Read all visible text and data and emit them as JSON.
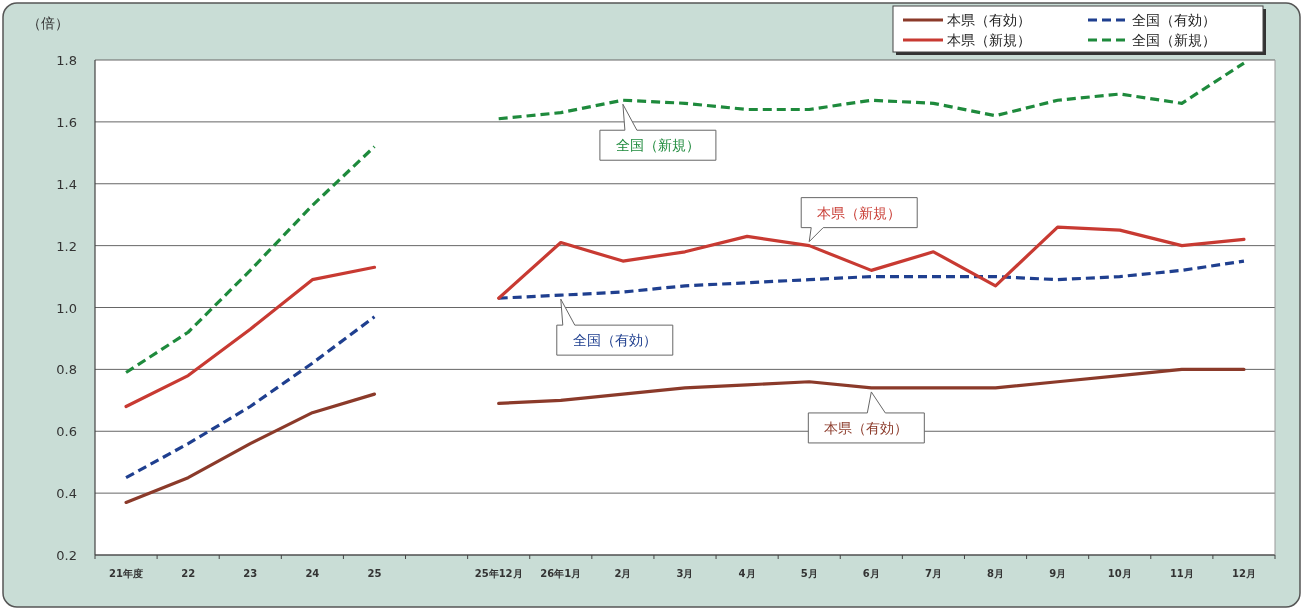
{
  "chart_data": {
    "type": "line",
    "ylabel": "（倍）",
    "categories": [
      "21年度",
      "22",
      "23",
      "24",
      "25",
      null,
      "25年12月",
      "26年1月",
      "2月",
      "3月",
      "4月",
      "5月",
      "6月",
      "7月",
      "8月",
      "9月",
      "10月",
      "11月",
      "12月"
    ],
    "series": [
      {
        "name": "本県（有効）",
        "color": "#8b3a2a",
        "line_style": "solid",
        "values": [
          0.37,
          0.45,
          0.56,
          0.66,
          0.72,
          null,
          0.69,
          0.7,
          0.72,
          0.74,
          0.75,
          0.76,
          0.74,
          0.74,
          0.74,
          0.76,
          0.78,
          0.8,
          0.8
        ]
      },
      {
        "name": "全国（有効）",
        "color": "#1f3f8f",
        "line_style": "dashed",
        "values": [
          0.45,
          0.56,
          0.68,
          0.82,
          0.97,
          null,
          1.03,
          1.04,
          1.05,
          1.07,
          1.08,
          1.09,
          1.1,
          1.1,
          1.1,
          1.09,
          1.1,
          1.12,
          1.15
        ]
      },
      {
        "name": "本県（新規）",
        "color": "#c83a32",
        "line_style": "solid",
        "values": [
          0.68,
          0.78,
          0.93,
          1.09,
          1.13,
          null,
          1.03,
          1.21,
          1.15,
          1.18,
          1.23,
          1.2,
          1.12,
          1.18,
          1.07,
          1.26,
          1.25,
          1.2,
          1.22
        ]
      },
      {
        "name": "全国（新規）",
        "color": "#1e8a3c",
        "line_style": "dashed",
        "values": [
          0.79,
          0.92,
          1.12,
          1.33,
          1.52,
          null,
          1.61,
          1.63,
          1.67,
          1.66,
          1.64,
          1.64,
          1.67,
          1.66,
          1.62,
          1.67,
          1.69,
          1.66,
          1.79
        ]
      }
    ],
    "annotations": [
      {
        "text": "全国（新規）",
        "x": "2月",
        "y": 1.67
      },
      {
        "text": "全国（有効）",
        "x": "26年1月",
        "y": 1.04
      },
      {
        "text": "本県（新規）",
        "x": "5月",
        "y": 1.2
      },
      {
        "text": "本県（有効）",
        "x": "6月",
        "y": 0.74
      }
    ],
    "ylim": [
      0.2,
      1.8
    ],
    "yticks": [
      0.2,
      0.4,
      0.6,
      0.8,
      {
        "value": 1.0,
        "label": "1.0"
      },
      1.2,
      1.4,
      1.6,
      1.8
    ],
    "grid": "y",
    "legend": "top right",
    "marker": "none"
  }
}
